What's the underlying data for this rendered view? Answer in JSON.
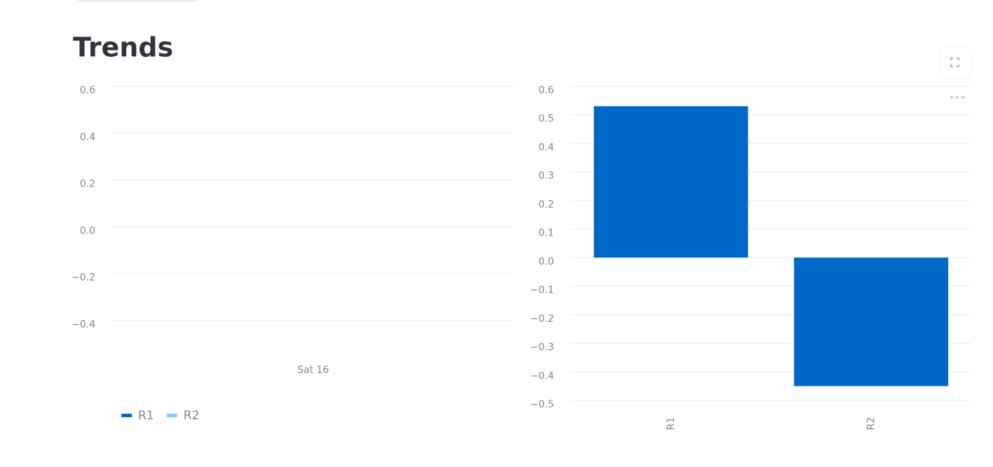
{
  "title": "Trends",
  "chart_data": [
    {
      "type": "line",
      "x": [
        "Sat 16"
      ],
      "series": [
        {
          "name": "R1",
          "color": "#0068c9",
          "values": [
            null
          ]
        },
        {
          "name": "R2",
          "color": "#83c9ff",
          "values": [
            null
          ]
        }
      ],
      "ylim": [
        -0.52,
        0.6
      ],
      "yticks": [
        {
          "value": -0.4,
          "label": "−0.4"
        },
        {
          "value": -0.2,
          "label": "−0.2"
        },
        {
          "value": 0,
          "label": "0.0"
        },
        0.2,
        0.4,
        0.6
      ],
      "grid": true,
      "legend": "bottom-left"
    },
    {
      "type": "bar",
      "categories": [
        "R1",
        "R2"
      ],
      "values": [
        0.53,
        -0.45
      ],
      "color": "#0068c9",
      "ylim": [
        -0.5,
        0.6
      ],
      "yticks": [
        {
          "value": -0.5,
          "label": "−0.5"
        },
        {
          "value": -0.4,
          "label": "−0.4"
        },
        {
          "value": -0.3,
          "label": "−0.3"
        },
        {
          "value": -0.2,
          "label": "−0.2"
        },
        {
          "value": -0.1,
          "label": "−0.1"
        },
        {
          "value": 0,
          "label": "0.0"
        },
        0.1,
        0.2,
        0.3,
        0.4,
        0.5,
        0.6
      ],
      "grid": true
    }
  ]
}
